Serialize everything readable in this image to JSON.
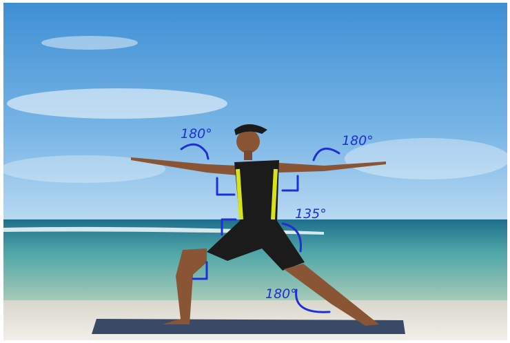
{
  "annotations": [
    {
      "label": "180°"
    },
    {
      "label": "180°"
    },
    {
      "label": "135°"
    },
    {
      "label": "180°"
    }
  ]
}
